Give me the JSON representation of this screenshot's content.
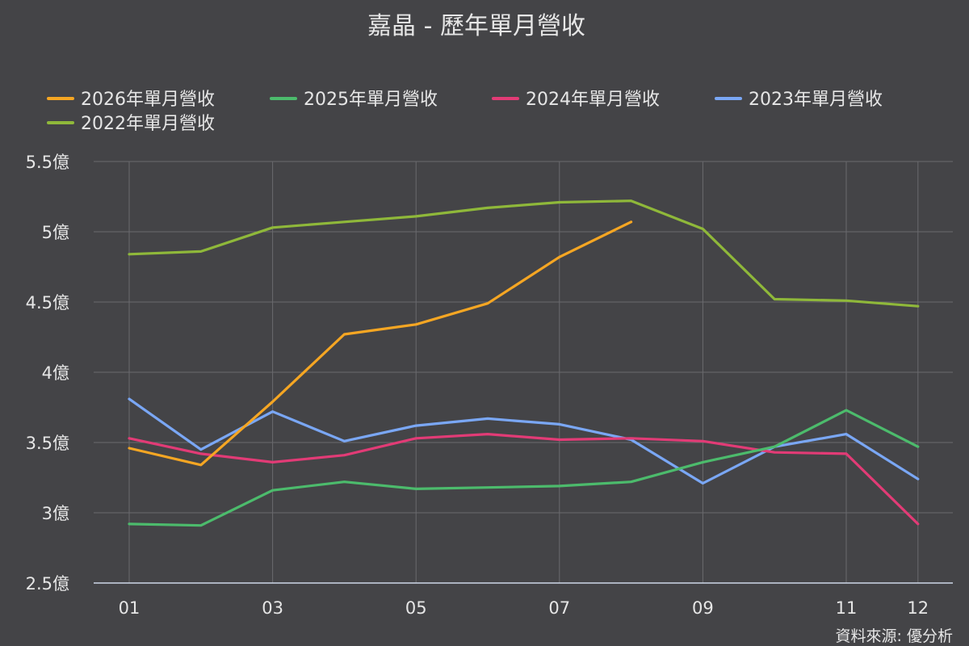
{
  "chart_data": {
    "type": "line",
    "title": "嘉晶 - 歷年單月營收",
    "categories": [
      "01",
      "02",
      "03",
      "04",
      "05",
      "06",
      "07",
      "08",
      "09",
      "10",
      "11",
      "12"
    ],
    "x_tick_labels": [
      "01",
      "03",
      "05",
      "07",
      "09",
      "11",
      "12"
    ],
    "y_ticks": [
      2.5,
      3,
      3.5,
      4,
      4.5,
      5,
      5.5
    ],
    "y_tick_labels": [
      "2.5億",
      "3億",
      "3.5億",
      "4億",
      "4.5億",
      "5億",
      "5.5億"
    ],
    "ylim": [
      2.5,
      5.5
    ],
    "grid": true,
    "legend_position": "top",
    "series": [
      {
        "name": "2026年單月營收",
        "color": "#f5a623",
        "values": [
          3.46,
          3.34,
          3.79,
          4.27,
          4.34,
          4.49,
          4.82,
          5.07,
          null,
          null,
          null,
          null
        ]
      },
      {
        "name": "2025年單月營收",
        "color": "#4cbb6c",
        "values": [
          2.92,
          2.91,
          3.16,
          3.22,
          3.17,
          3.18,
          3.19,
          3.22,
          3.36,
          3.47,
          3.73,
          3.47
        ]
      },
      {
        "name": "2024年單月營收",
        "color": "#e23b76",
        "values": [
          3.53,
          3.42,
          3.36,
          3.41,
          3.53,
          3.56,
          3.52,
          3.53,
          3.51,
          3.43,
          3.42,
          2.92
        ]
      },
      {
        "name": "2023年單月營收",
        "color": "#7aa7f5",
        "values": [
          3.81,
          3.45,
          3.72,
          3.51,
          3.62,
          3.67,
          3.63,
          3.52,
          3.21,
          3.47,
          3.56,
          3.24
        ]
      },
      {
        "name": "2022年單月營收",
        "color": "#8fb83a",
        "values": [
          4.84,
          4.86,
          5.03,
          5.07,
          5.11,
          5.17,
          5.21,
          5.22,
          5.02,
          4.52,
          4.51,
          4.47
        ]
      }
    ],
    "source_label": "資料來源: 優分析"
  }
}
